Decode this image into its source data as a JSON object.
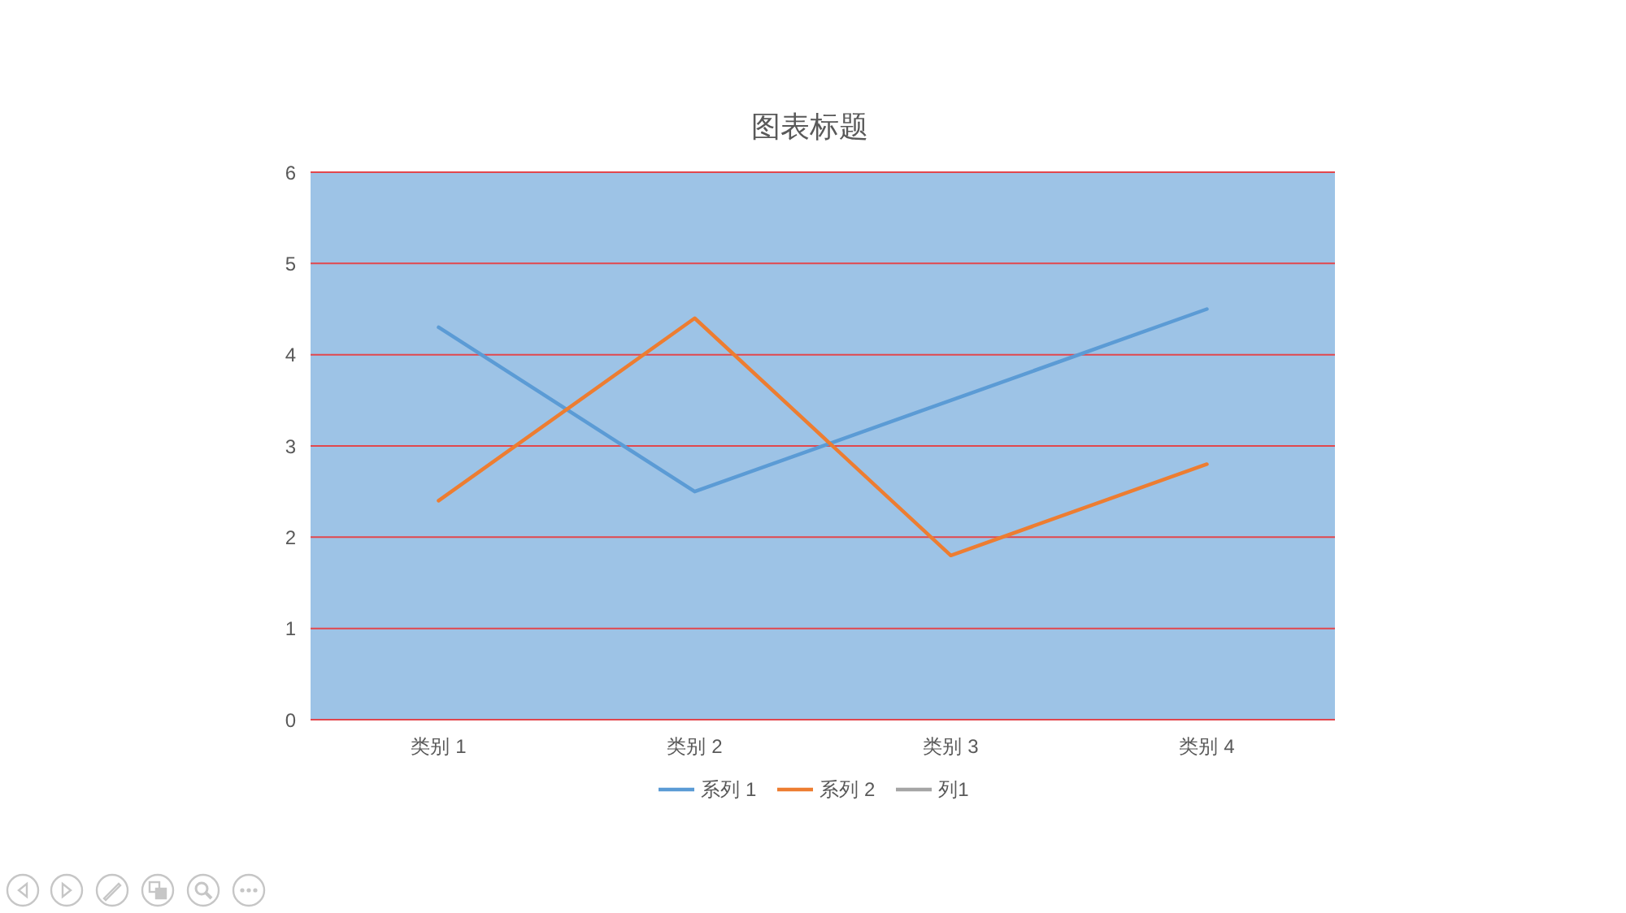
{
  "chart_data": {
    "type": "line",
    "title": "图表标题",
    "categories": [
      "类别 1",
      "类别 2",
      "类别 3",
      "类别 4"
    ],
    "series": [
      {
        "name": "系列 1",
        "color": "#5b9bd5",
        "values": [
          4.3,
          2.5,
          3.5,
          4.5
        ]
      },
      {
        "name": "系列 2",
        "color": "#ed7d31",
        "values": [
          2.4,
          4.4,
          1.8,
          2.8
        ]
      },
      {
        "name": "列1",
        "color": "#a5a5a5",
        "values": [
          null,
          null,
          null,
          null
        ]
      }
    ],
    "ylim": [
      0,
      6
    ],
    "yticks": [
      0,
      1,
      2,
      3,
      4,
      5,
      6
    ],
    "grid": "y",
    "legend": "bottom",
    "marker": "none",
    "line_style": "solid"
  }
}
